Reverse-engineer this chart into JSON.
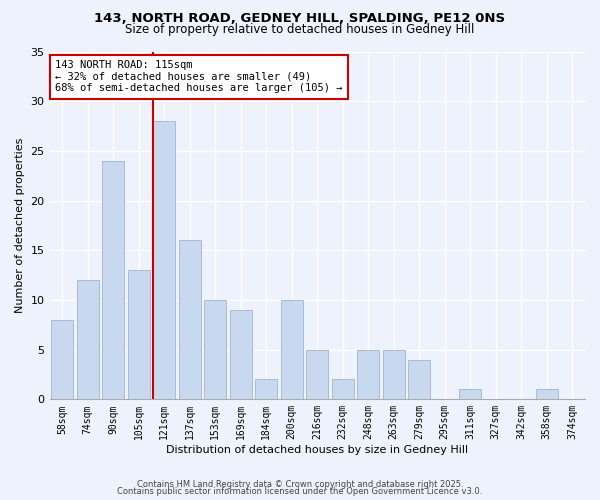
{
  "title1": "143, NORTH ROAD, GEDNEY HILL, SPALDING, PE12 0NS",
  "title2": "Size of property relative to detached houses in Gedney Hill",
  "xlabel": "Distribution of detached houses by size in Gedney Hill",
  "ylabel": "Number of detached properties",
  "categories": [
    "58sqm",
    "74sqm",
    "90sqm",
    "105sqm",
    "121sqm",
    "137sqm",
    "153sqm",
    "169sqm",
    "184sqm",
    "200sqm",
    "216sqm",
    "232sqm",
    "248sqm",
    "263sqm",
    "279sqm",
    "295sqm",
    "311sqm",
    "327sqm",
    "342sqm",
    "358sqm",
    "374sqm"
  ],
  "values": [
    8,
    12,
    24,
    13,
    28,
    16,
    10,
    9,
    2,
    10,
    5,
    2,
    5,
    5,
    4,
    0,
    1,
    0,
    0,
    1,
    0
  ],
  "bar_color": "#c8d8ee",
  "bar_edge_color": "#a8bcd8",
  "vline_color": "#cc0000",
  "annotation_line1": "143 NORTH ROAD: 115sqm",
  "annotation_line2": "← 32% of detached houses are smaller (49)",
  "annotation_line3": "68% of semi-detached houses are larger (105) →",
  "annotation_box_color": "#ffffff",
  "annotation_box_edge": "#cc0000",
  "ylim": [
    0,
    35
  ],
  "yticks": [
    0,
    5,
    10,
    15,
    20,
    25,
    30,
    35
  ],
  "bg_color": "#eef2fc",
  "grid_color": "#ffffff",
  "footer1": "Contains HM Land Registry data © Crown copyright and database right 2025.",
  "footer2": "Contains public sector information licensed under the Open Government Licence v3.0."
}
